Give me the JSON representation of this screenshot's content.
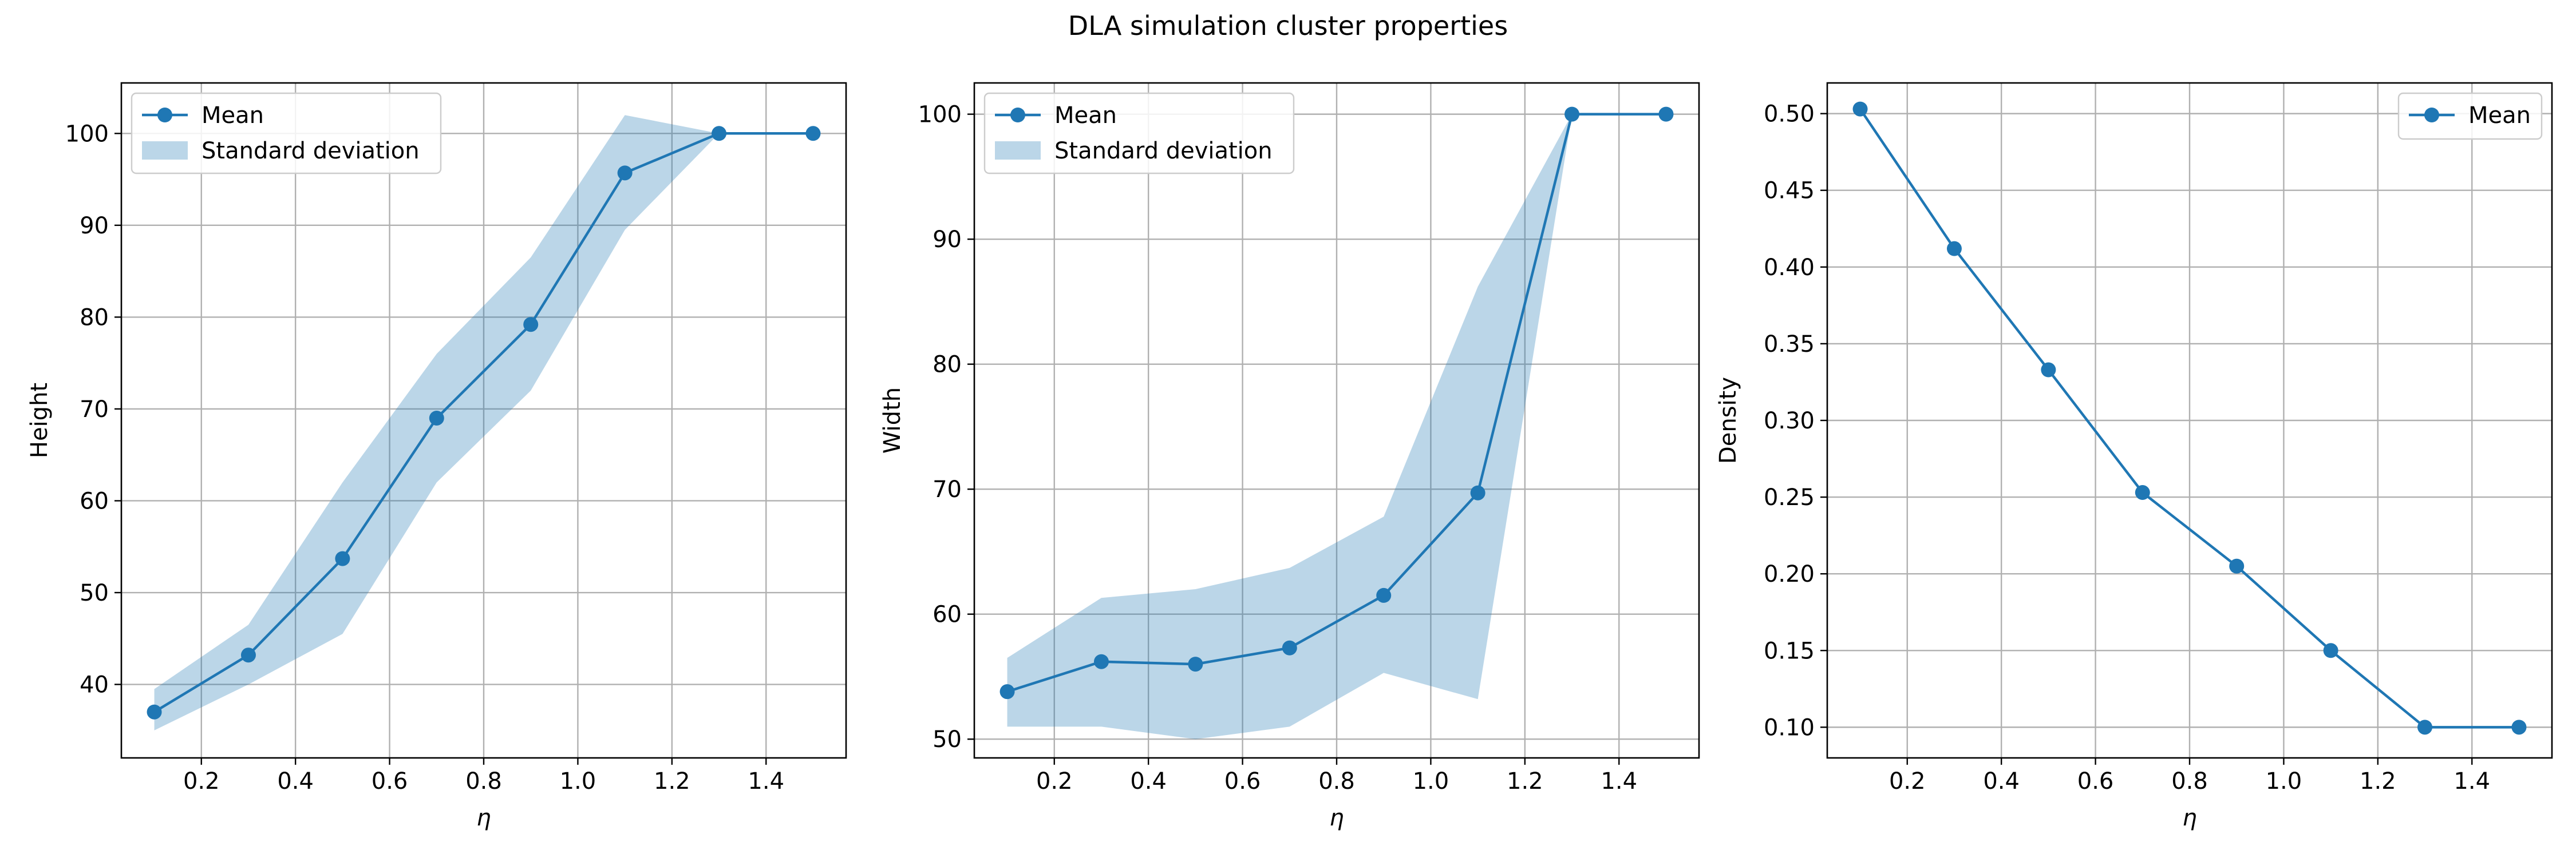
{
  "figure": {
    "suptitle": "DLA simulation cluster properties",
    "colors": {
      "line": "#1f77b4",
      "band": "#1f77b4",
      "grid": "#b0b0b0"
    }
  },
  "chart_data": [
    {
      "type": "line",
      "title": "",
      "xlabel": "η",
      "ylabel": "Height",
      "xlim": [
        0.03,
        1.57
      ],
      "ylim": [
        32,
        105.5
      ],
      "xticks": [
        0.2,
        0.4,
        0.6,
        0.8,
        1.0,
        1.2,
        1.4
      ],
      "xtick_labels": [
        "0.2",
        "0.4",
        "0.6",
        "0.8",
        "1.0",
        "1.2",
        "1.4"
      ],
      "yticks": [
        40,
        50,
        60,
        70,
        80,
        90,
        100
      ],
      "ytick_labels": [
        "40",
        "50",
        "60",
        "70",
        "80",
        "90",
        "100"
      ],
      "grid": true,
      "legend_position": "upper-left",
      "x": [
        0.1,
        0.3,
        0.5,
        0.7,
        0.9,
        1.1,
        1.3,
        1.5
      ],
      "series": [
        {
          "name": "Mean",
          "values": [
            37.0,
            43.2,
            53.7,
            69.0,
            79.2,
            95.7,
            100.0,
            100.0
          ]
        }
      ],
      "band": {
        "name": "Standard deviation",
        "lower": [
          35.0,
          40.0,
          45.5,
          62.0,
          72.0,
          89.5,
          100.0,
          100.0
        ],
        "upper": [
          39.5,
          46.5,
          62.0,
          76.0,
          86.5,
          102.0,
          100.0,
          100.0
        ]
      }
    },
    {
      "type": "line",
      "title": "",
      "xlabel": "η",
      "ylabel": "Width",
      "xlim": [
        0.03,
        1.57
      ],
      "ylim": [
        48.5,
        102.5
      ],
      "xticks": [
        0.2,
        0.4,
        0.6,
        0.8,
        1.0,
        1.2,
        1.4
      ],
      "xtick_labels": [
        "0.2",
        "0.4",
        "0.6",
        "0.8",
        "1.0",
        "1.2",
        "1.4"
      ],
      "yticks": [
        50,
        60,
        70,
        80,
        90,
        100
      ],
      "ytick_labels": [
        "50",
        "60",
        "70",
        "80",
        "90",
        "100"
      ],
      "grid": true,
      "legend_position": "upper-left",
      "x": [
        0.1,
        0.3,
        0.5,
        0.7,
        0.9,
        1.1,
        1.3,
        1.5
      ],
      "series": [
        {
          "name": "Mean",
          "values": [
            53.8,
            56.2,
            56.0,
            57.3,
            61.5,
            69.7,
            100.0,
            100.0
          ]
        }
      ],
      "band": {
        "name": "Standard deviation",
        "lower": [
          51.0,
          51.0,
          50.0,
          51.0,
          55.3,
          53.2,
          100.0,
          100.0
        ],
        "upper": [
          56.5,
          61.3,
          62.0,
          63.7,
          67.8,
          86.2,
          100.0,
          100.0
        ]
      }
    },
    {
      "type": "line",
      "title": "",
      "xlabel": "η",
      "ylabel": "Density",
      "xlim": [
        0.03,
        1.57
      ],
      "ylim": [
        0.08,
        0.52
      ],
      "xticks": [
        0.2,
        0.4,
        0.6,
        0.8,
        1.0,
        1.2,
        1.4
      ],
      "xtick_labels": [
        "0.2",
        "0.4",
        "0.6",
        "0.8",
        "1.0",
        "1.2",
        "1.4"
      ],
      "yticks": [
        0.1,
        0.15,
        0.2,
        0.25,
        0.3,
        0.35,
        0.4,
        0.45,
        0.5
      ],
      "ytick_labels": [
        "0.10",
        "0.15",
        "0.20",
        "0.25",
        "0.30",
        "0.35",
        "0.40",
        "0.45",
        "0.50"
      ],
      "grid": true,
      "legend_position": "upper-right",
      "x": [
        0.1,
        0.3,
        0.5,
        0.7,
        0.9,
        1.1,
        1.3,
        1.5
      ],
      "series": [
        {
          "name": "Mean",
          "values": [
            0.503,
            0.412,
            0.333,
            0.253,
            0.205,
            0.15,
            0.1,
            0.1
          ]
        }
      ]
    }
  ]
}
